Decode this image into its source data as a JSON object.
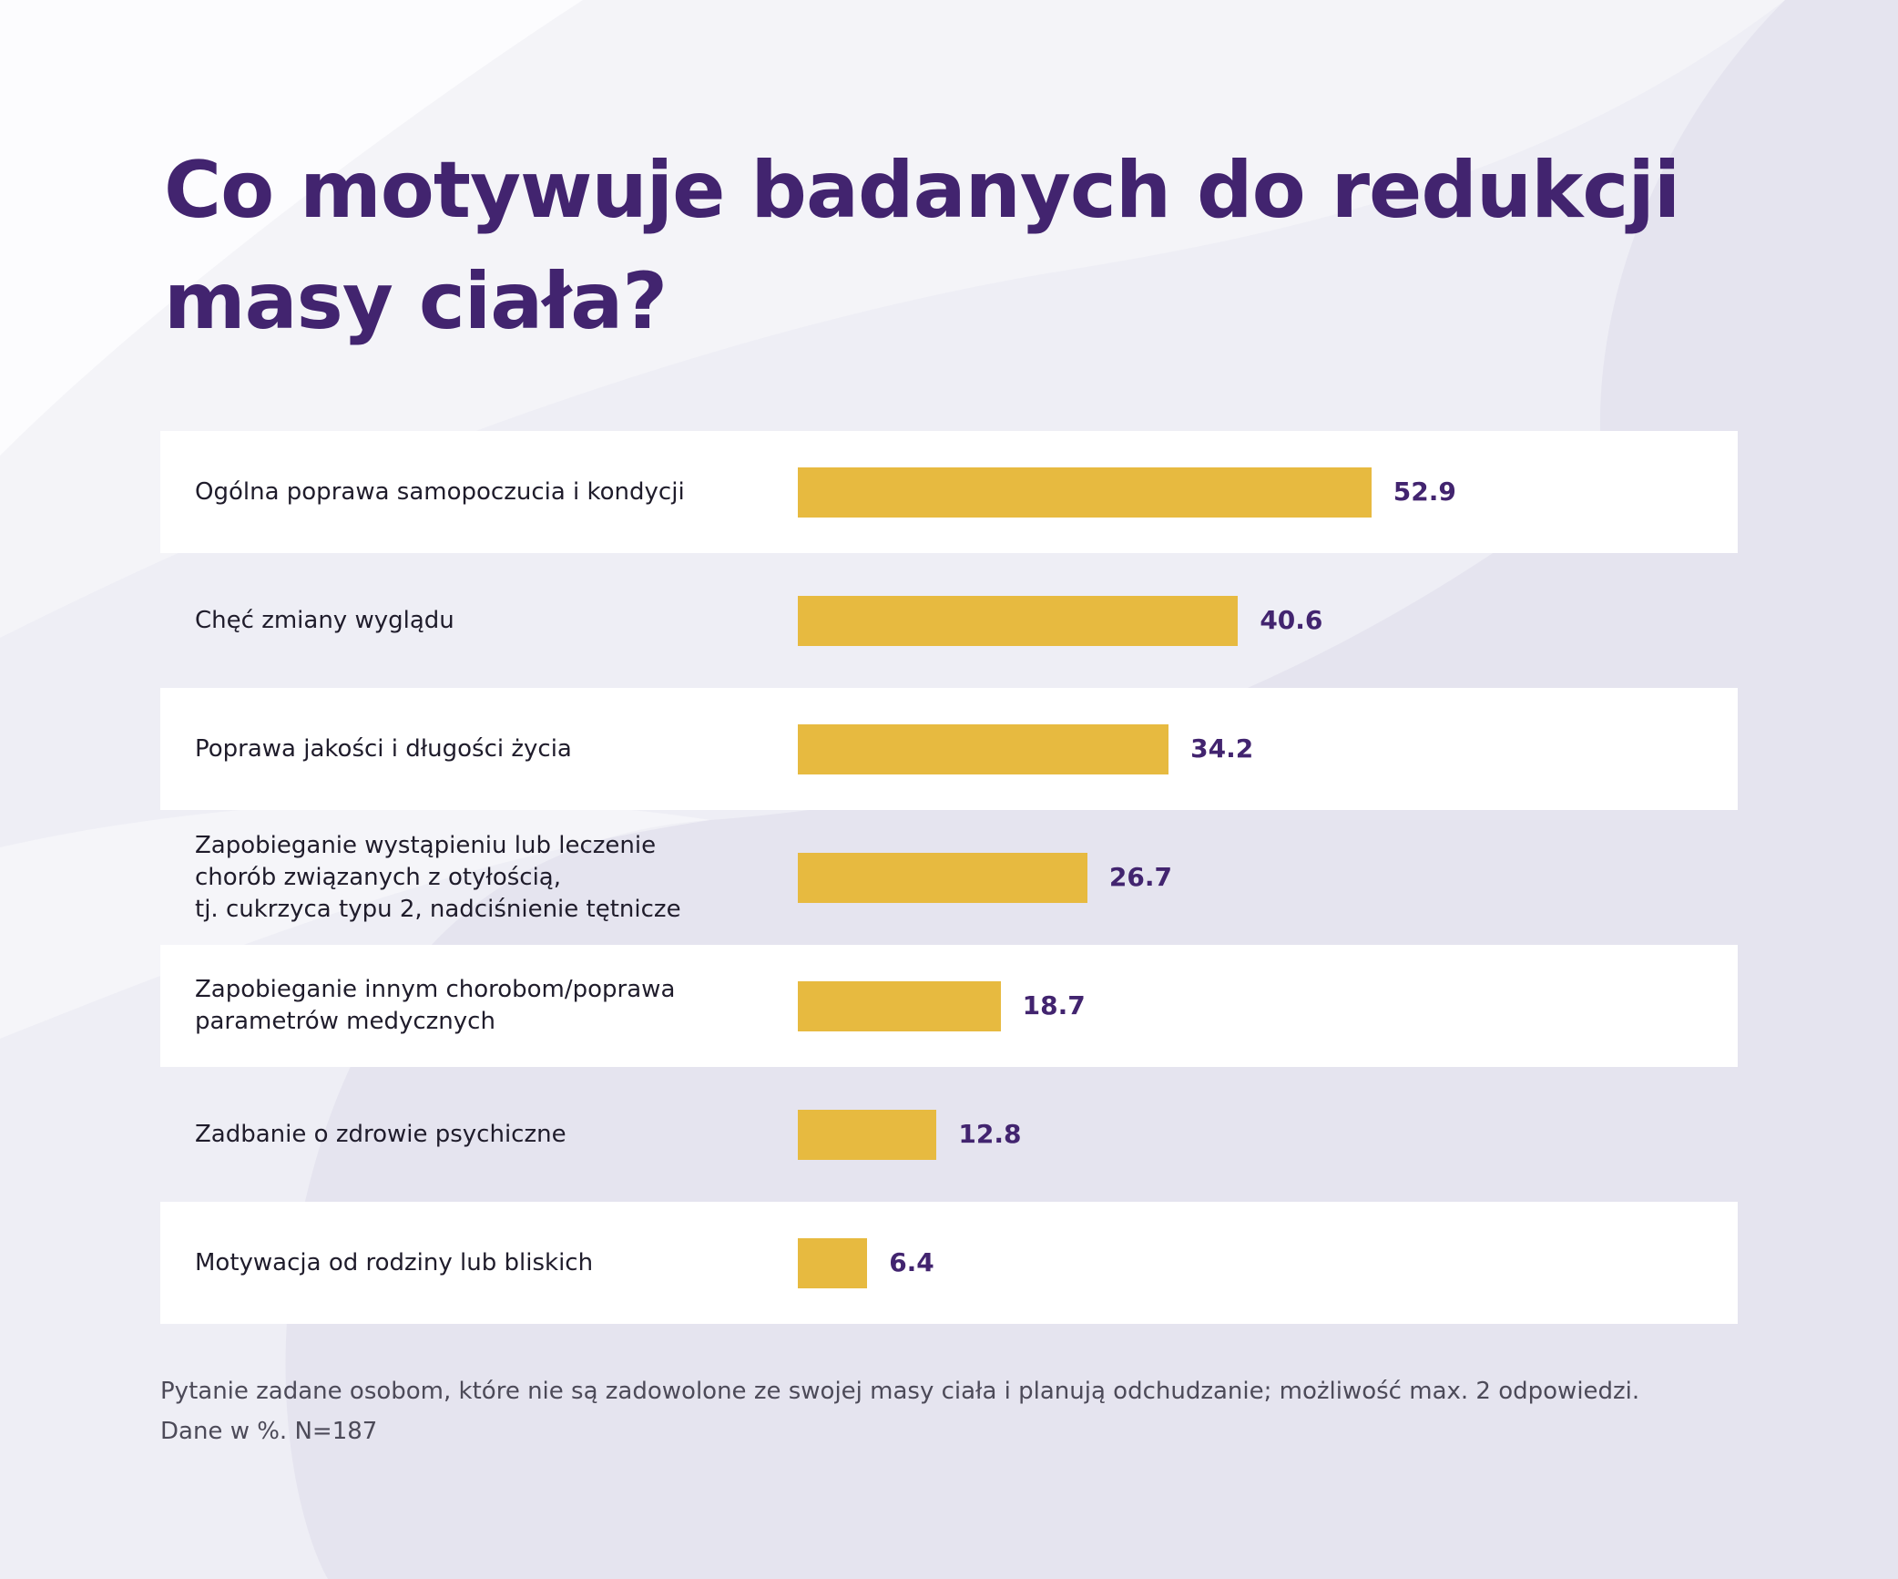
{
  "title": "Co motywuje badanych do redukcji masy ciała?",
  "colors": {
    "title": "#42246f",
    "bar": "#e7ba40",
    "value": "#42246f",
    "row_stripe": "#ffffff",
    "background": "#eeeef5"
  },
  "chart_data": {
    "type": "bar",
    "orientation": "horizontal",
    "title": "Co motywuje badanych do redukcji masy ciała?",
    "categories": [
      "Ogólna poprawa samopoczucia i kondycji",
      "Chęć zmiany wyglądu",
      "Poprawa jakości i długości życia",
      "Zapobieganie wystąpieniu lub leczenie\nchorób związanych z otyłością,\ntj. cukrzyca typu 2, nadciśnienie tętnicze",
      "Zapobieganie innym chorobom/poprawa\nparametrów medycznych",
      "Zadbanie o zdrowie psychiczne",
      "Motywacja od rodziny lub bliskich"
    ],
    "values": [
      52.9,
      40.6,
      34.2,
      26.7,
      18.7,
      12.8,
      6.4
    ],
    "value_labels": [
      "52.9",
      "40.6",
      "34.2",
      "26.7",
      "18.7",
      "12.8",
      "6.4"
    ],
    "xlim": [
      0,
      100
    ],
    "grid": false,
    "legend": false
  },
  "footnote": {
    "line1": "Pytanie zadane osobom, które nie są zadowolone ze swojej masy ciała i planują odchudzanie; możliwość max. 2 odpowiedzi.",
    "line2": "Dane w %. N=187"
  }
}
